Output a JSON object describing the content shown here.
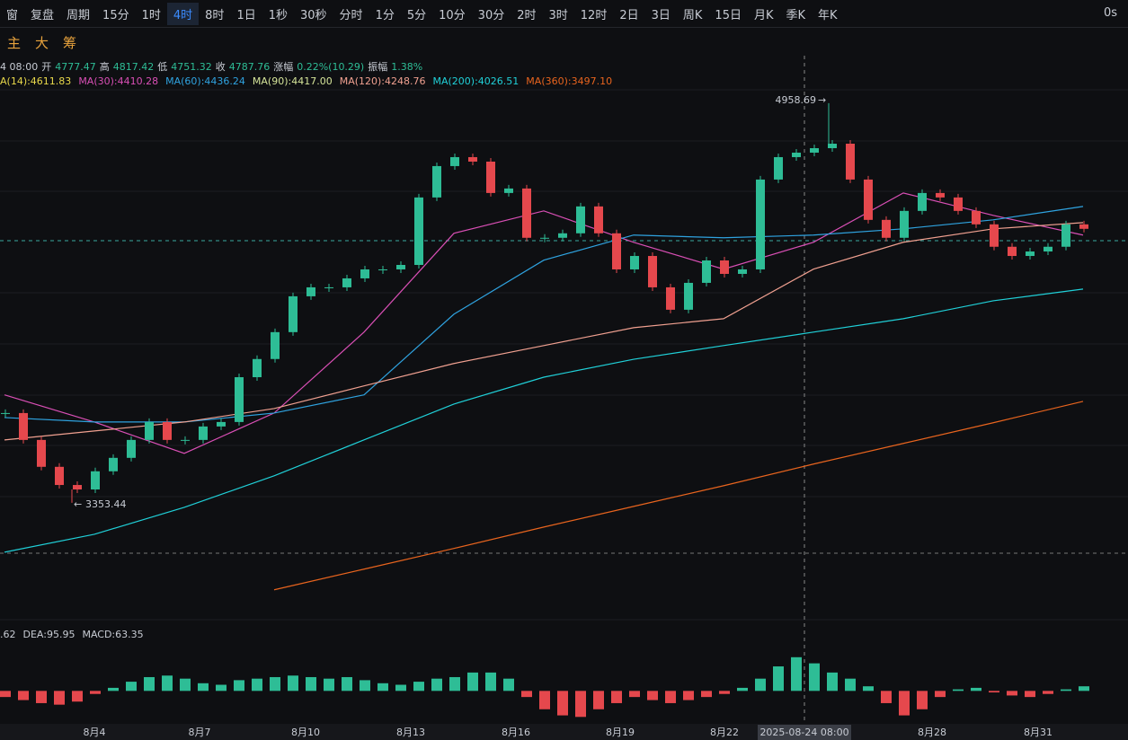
{
  "toolbar": {
    "items": [
      "窗",
      "复盘",
      "周期",
      "15分",
      "1时",
      "4时",
      "8时",
      "1日",
      "1秒",
      "30秒",
      "分时",
      "1分",
      "5分",
      "10分",
      "30分",
      "2时",
      "3时",
      "12时",
      "2日",
      "3日",
      "周K",
      "15日",
      "月K",
      "季K",
      "年K"
    ],
    "selected": 5,
    "timer": "0s"
  },
  "tools": {
    "labels": [
      "主",
      "大",
      "筹"
    ]
  },
  "info": {
    "items": [
      "4 08:00",
      "开",
      4777.47,
      "高",
      4817.42,
      "低",
      4751.32,
      "收",
      4787.76,
      "涨幅",
      "0.22%(10.29)",
      "振幅",
      "1.38%"
    ]
  },
  "chart_data": {
    "type": "candlestick",
    "values": [
      3714,
      3606,
      3498,
      3425,
      3407,
      3480,
      3534,
      3606,
      3678,
      3606,
      3606,
      3660,
      3678,
      3858,
      3931,
      4039,
      4183,
      4219,
      4219,
      4255,
      4291,
      4291,
      4309,
      4580,
      4706,
      4742,
      4724,
      4598,
      4616,
      4418,
      4418,
      4436,
      4544,
      4436,
      4291,
      4345,
      4219,
      4129,
      4237,
      4327,
      4273,
      4291,
      4652,
      4742,
      4760,
      4778,
      4796,
      4652,
      4490,
      4418,
      4526,
      4598,
      4580,
      4526,
      4472,
      4382,
      4345,
      4363,
      4382,
      4472,
      4454
    ],
    "up_color": "#2ebd96",
    "down_color": "#e5484d",
    "ylim": [
      2884,
      5265
    ],
    "high_label": 4958.69,
    "low_label": 3353.44,
    "ma": [
      {
        "label": "A(14):4611.83",
        "color": "#e8d84a"
      },
      {
        "label": "MA(30):4410.28",
        "color": "#d94fb5",
        "values": [
          3787,
          3678,
          3552,
          3714,
          4039,
          4436,
          4526,
          4400,
          4292,
          4400,
          4598,
          4508,
          4429
        ]
      },
      {
        "label": "MA(60):4436.24",
        "color": "#2fa3e0",
        "values": [
          3696,
          3678,
          3678,
          3714,
          3787,
          4111,
          4328,
          4429,
          4418,
          4429,
          4454,
          4490,
          4544
        ]
      },
      {
        "label": "MA(90):4417.00",
        "color": "#d6e59a"
      },
      {
        "label": "MA(120):4248.76",
        "color": "#f0a090",
        "values": [
          3606,
          3642,
          3678,
          3732,
          3823,
          3913,
          3985,
          4057,
          4093,
          4292,
          4400,
          4454,
          4479
        ]
      },
      {
        "label": "MA(200):4026.51",
        "color": "#20d0d8",
        "values": [
          3155,
          3227,
          3335,
          3462,
          3606,
          3750,
          3858,
          3930,
          3985,
          4039,
          4093,
          4165,
          4212
        ]
      },
      {
        "label": "MA(360):3497.10",
        "color": "#e8641e",
        "values": [
          null,
          null,
          null,
          3004,
          3087,
          3170,
          3256,
          3339,
          3422,
          3509,
          3592,
          3675,
          3761
        ]
      }
    ],
    "macd": {
      "labels": [
        ".62",
        "DEA:95.95",
        "MACD:63.35"
      ],
      "ylim": [
        -90,
        130
      ],
      "values": [
        -20,
        -30,
        -40,
        -45,
        -35,
        -10,
        10,
        30,
        45,
        50,
        40,
        25,
        20,
        35,
        40,
        45,
        50,
        45,
        40,
        45,
        35,
        25,
        20,
        30,
        40,
        45,
        60,
        60,
        40,
        -20,
        -60,
        -80,
        -85,
        -60,
        -40,
        -20,
        -30,
        -40,
        -30,
        -20,
        -10,
        10,
        40,
        80,
        110,
        90,
        60,
        40,
        15,
        -40,
        -80,
        -60,
        -20,
        5,
        10,
        -5,
        -15,
        -20,
        -10,
        5,
        15
      ]
    },
    "x_labels": [
      "8月4",
      "8月7",
      "8月10",
      "8月13",
      "8月16",
      "8月19",
      "8月22",
      "8月28",
      "8月31"
    ],
    "crosshair_label": "2025-08-24 08:00"
  }
}
